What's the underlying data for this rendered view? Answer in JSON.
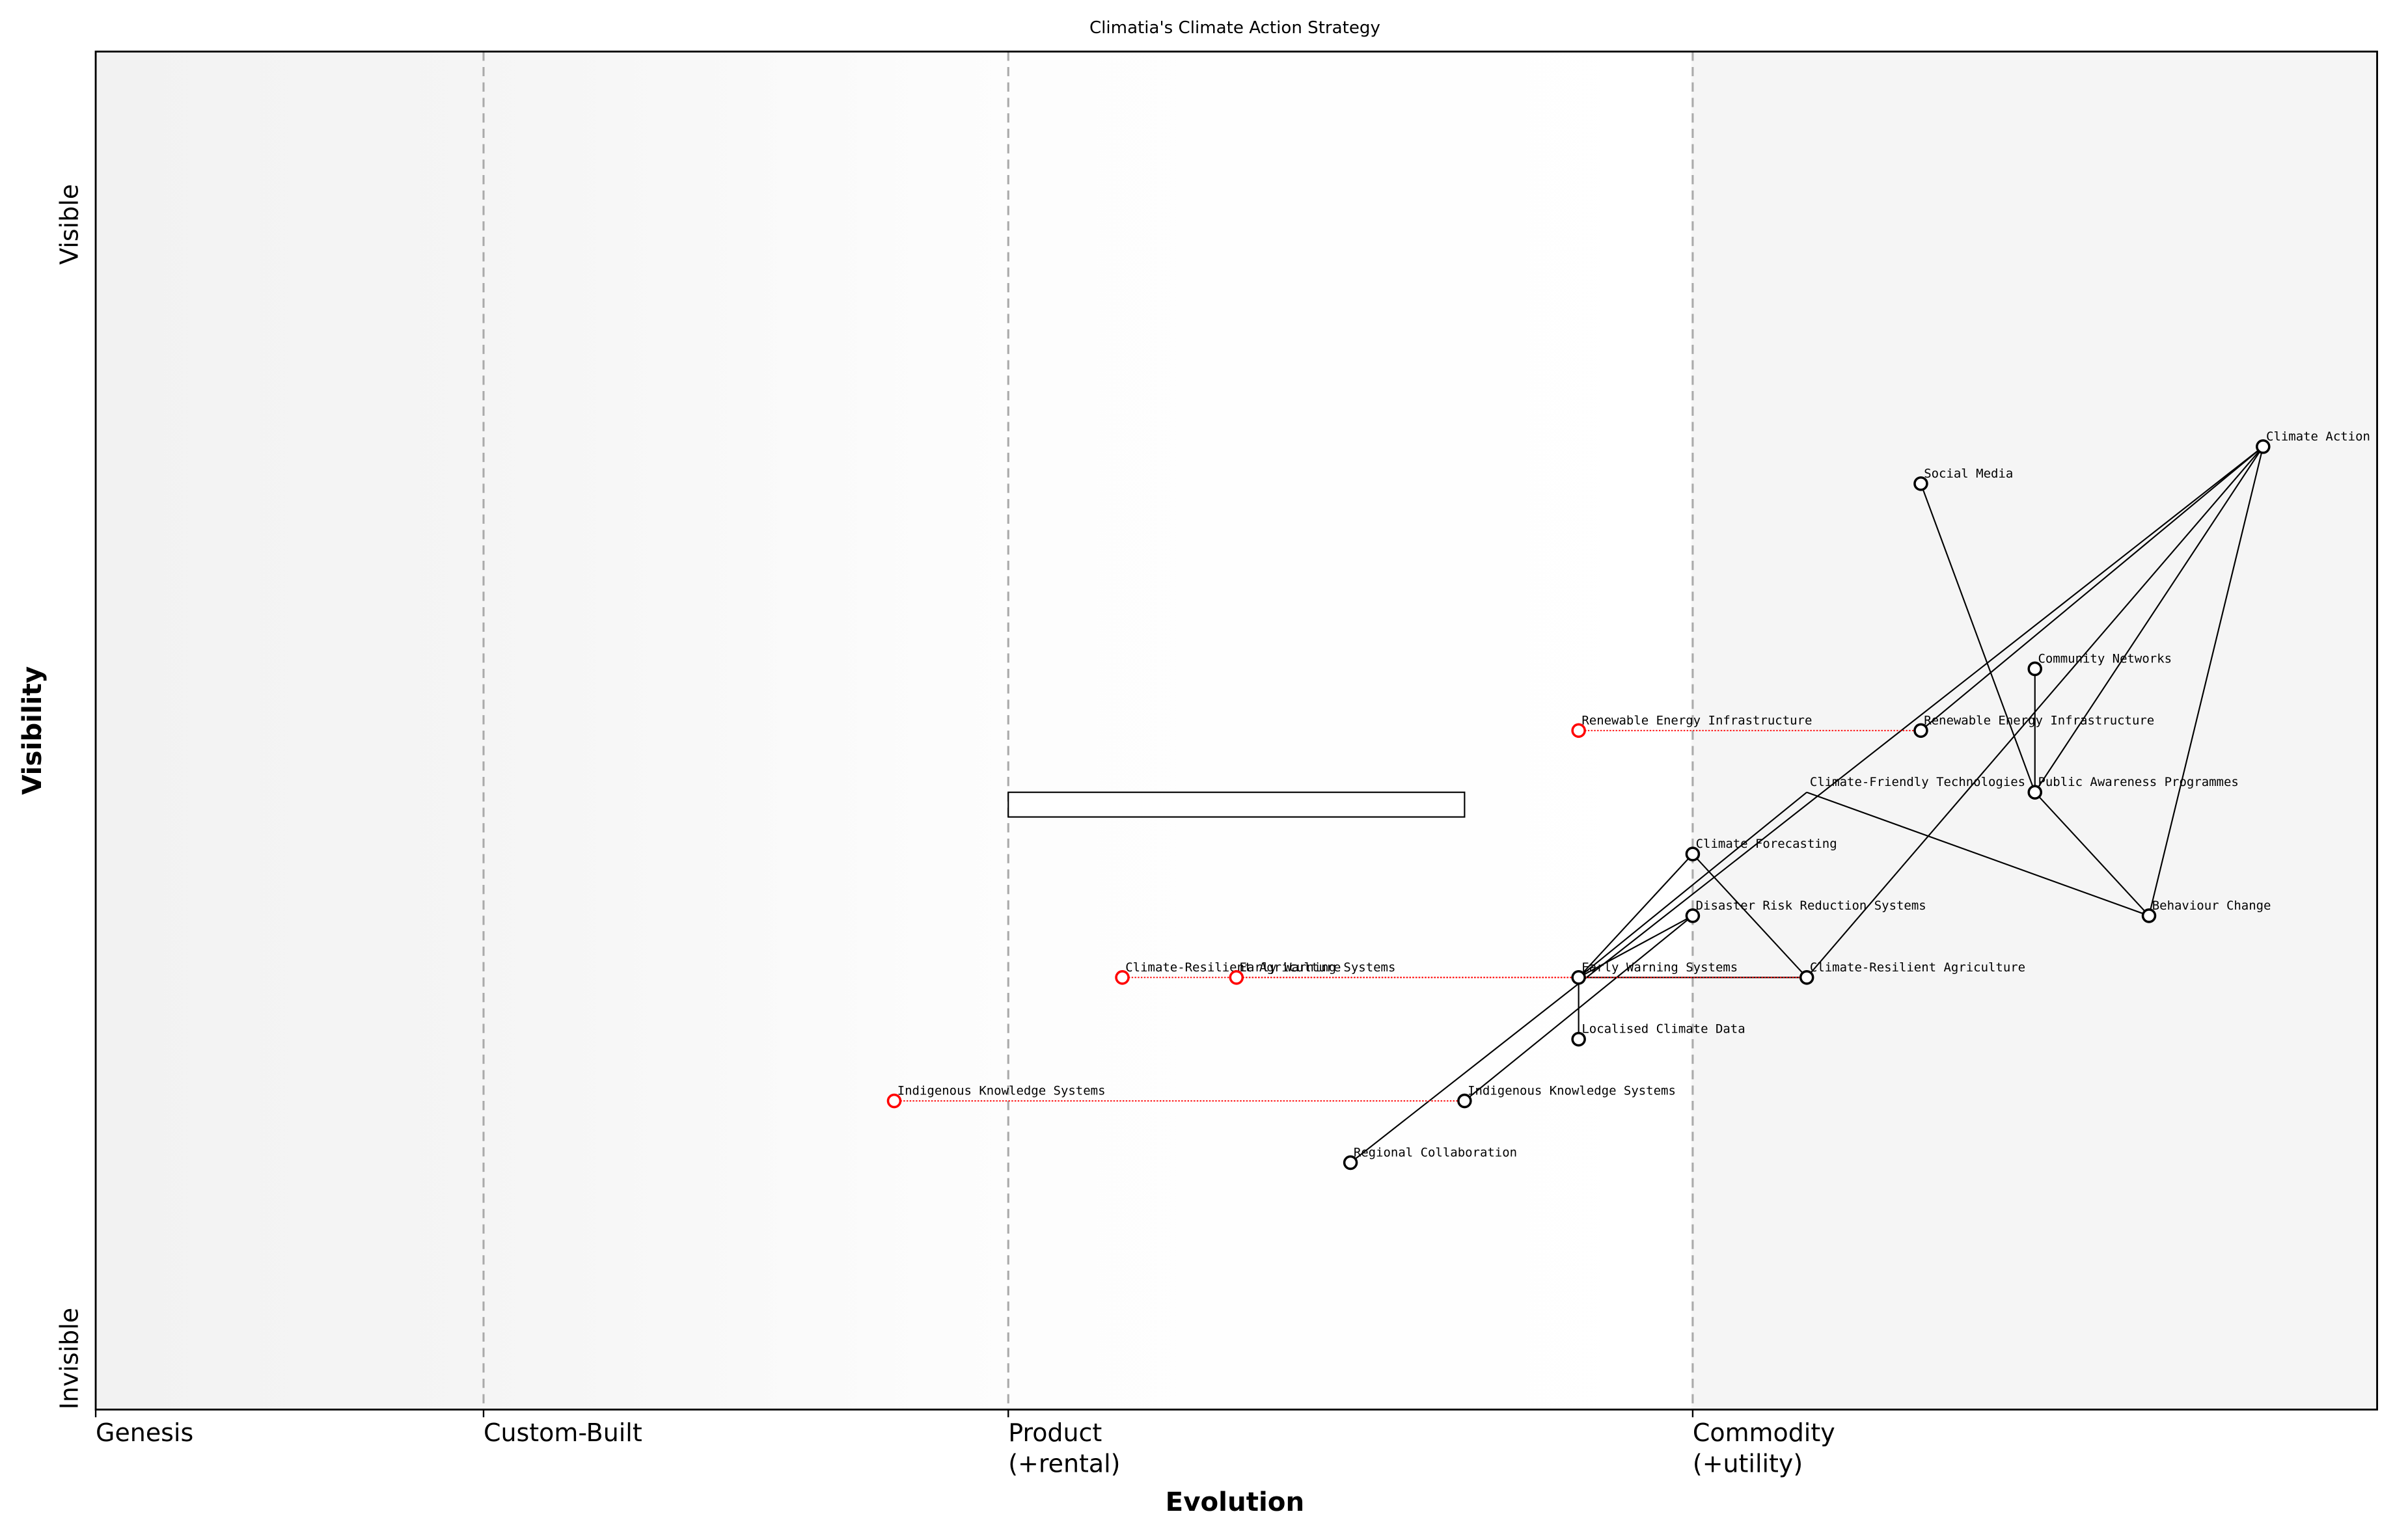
{
  "chart_data": {
    "type": "wardley",
    "title": "Climatia's Climate Action Strategy",
    "xlabel": "Evolution",
    "ylabel": "Visibility",
    "y_top_label": "Visible",
    "y_bottom_label": "Invisible",
    "xlim": [
      0,
      1
    ],
    "ylim": [
      0,
      1.1
    ],
    "stages": [
      {
        "label": [
          "Genesis"
        ],
        "position": 0
      },
      {
        "label": [
          "Custom-Built"
        ],
        "position": 0.17
      },
      {
        "label": [
          "Product",
          "(+rental)"
        ],
        "position": 0.4
      },
      {
        "label": [
          "Commodity",
          "(+utility)"
        ],
        "position": 0.7
      }
    ],
    "components": [
      {
        "name": "Climate Action",
        "evolution": 0.95,
        "visibility": 0.78
      },
      {
        "name": "Social Media",
        "evolution": 0.8,
        "visibility": 0.75
      },
      {
        "name": "Community Networks",
        "evolution": 0.85,
        "visibility": 0.6
      },
      {
        "name": "Renewable Energy Infrastructure",
        "evolution": 0.8,
        "visibility": 0.55
      },
      {
        "name": "Public Awareness Programmes",
        "evolution": 0.85,
        "visibility": 0.5
      },
      {
        "name": "Climate-Friendly Technologies",
        "evolution": 0.75,
        "visibility": 0.5,
        "pipeline": [
          0.4,
          0.6
        ]
      },
      {
        "name": "Climate Forecasting",
        "evolution": 0.7,
        "visibility": 0.45
      },
      {
        "name": "Disaster Risk Reduction Systems",
        "evolution": 0.7,
        "visibility": 0.4
      },
      {
        "name": "Behaviour Change",
        "evolution": 0.9,
        "visibility": 0.4
      },
      {
        "name": "Early Warning Systems",
        "evolution": 0.65,
        "visibility": 0.35
      },
      {
        "name": "Climate-Resilient Agriculture",
        "evolution": 0.75,
        "visibility": 0.35
      },
      {
        "name": "Localised Climate Data",
        "evolution": 0.65,
        "visibility": 0.3
      },
      {
        "name": "Indigenous Knowledge Systems",
        "evolution": 0.6,
        "visibility": 0.25
      },
      {
        "name": "Regional Collaboration",
        "evolution": 0.55,
        "visibility": 0.2
      }
    ],
    "links": [
      [
        "Climate Action",
        "Renewable Energy Infrastructure"
      ],
      [
        "Climate Action",
        "Public Awareness Programmes"
      ],
      [
        "Climate Action",
        "Behaviour Change"
      ],
      [
        "Climate Action",
        "Climate-Resilient Agriculture"
      ],
      [
        "Climate Action",
        "Regional Collaboration"
      ],
      [
        "Social Media",
        "Public Awareness Programmes"
      ],
      [
        "Community Networks",
        "Public Awareness Programmes"
      ],
      [
        "Public Awareness Programmes",
        "Behaviour Change"
      ],
      [
        "Climate-Friendly Technologies",
        "Behaviour Change"
      ],
      [
        "Climate-Friendly Technologies",
        "Early Warning Systems"
      ],
      [
        "Climate Forecasting",
        "Early Warning Systems"
      ],
      [
        "Climate Forecasting",
        "Climate-Resilient Agriculture"
      ],
      [
        "Disaster Risk Reduction Systems",
        "Early Warning Systems"
      ],
      [
        "Disaster Risk Reduction Systems",
        "Indigenous Knowledge Systems"
      ],
      [
        "Early Warning Systems",
        "Localised Climate Data"
      ],
      [
        "Early Warning Systems",
        "Climate-Resilient Agriculture"
      ]
    ],
    "evolve": [
      {
        "name": "Renewable Energy Infrastructure",
        "evolution": 0.65
      },
      {
        "name": "Climate-Resilient Agriculture",
        "evolution": 0.45
      },
      {
        "name": "Early Warning Systems",
        "evolution": 0.5
      },
      {
        "name": "Indigenous Knowledge Systems",
        "evolution": 0.35
      }
    ]
  }
}
